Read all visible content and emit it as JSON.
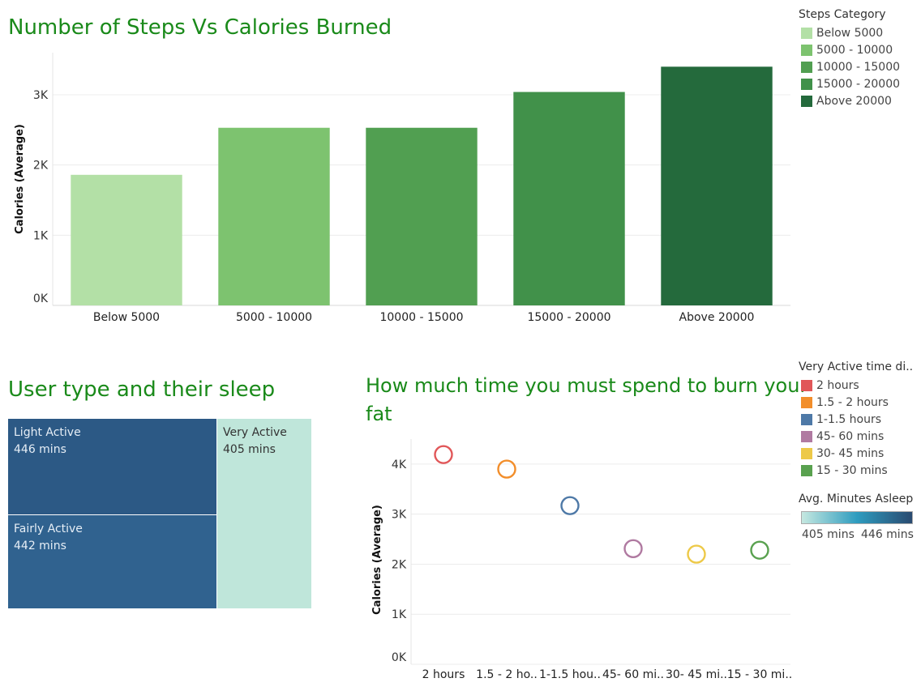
{
  "bar_chart": {
    "title": "Number of Steps Vs Calories Burned",
    "legend_title": "Steps Category"
  },
  "treemap": {
    "title": "User type and their sleep",
    "cells": [
      {
        "name": "Light Active",
        "value": "446 mins",
        "color": "#2c5985"
      },
      {
        "name": "Fairly Active",
        "value": "442 mins",
        "color": "#30628f"
      },
      {
        "name": "Very Active",
        "value": "405 mins",
        "color": "#bfe6da"
      }
    ]
  },
  "scatter_chart": {
    "title_line1": "How much time you must spend to burn your",
    "title_line2": "fat",
    "legend_title": "Very Active time di..",
    "gradient_legend": {
      "title": "Avg. Minutes Asleep",
      "min_label": "405 mins",
      "max_label": "446 mins",
      "color_low": "#c5e8e0",
      "color_mid": "#2e9cbf",
      "color_high": "#2a4a70"
    }
  },
  "chart_data": [
    {
      "type": "bar",
      "title": "Number of Steps Vs Calories Burned",
      "xlabel": "",
      "ylabel": "Calories (Average)",
      "categories": [
        "Below 5000",
        "5000 - 10000",
        "10000 - 15000",
        "15000 - 20000",
        "Above 20000"
      ],
      "values": [
        1860,
        2530,
        2530,
        3040,
        3400
      ],
      "colors": [
        "#b3e0a6",
        "#7dc36f",
        "#519f51",
        "#41914a",
        "#246a3c"
      ],
      "ylim": [
        0,
        3600
      ],
      "yticks": [
        0,
        1000,
        2000,
        3000
      ],
      "ytick_labels": [
        "0K",
        "1K",
        "2K",
        "3K"
      ],
      "legend": [
        "Below 5000",
        "5000 - 10000",
        "10000 - 15000",
        "15000 - 20000",
        "Above 20000"
      ],
      "legend_placement": "top-right",
      "grid": true
    },
    {
      "type": "scatter",
      "title": "How much time you must spend to burn your fat",
      "xlabel": "",
      "ylabel": "Calories (Average)",
      "categories": [
        "2 hours",
        "1.5 - 2 ho..",
        "1-1.5 hou..",
        "45- 60 mi..",
        "30- 45 mi..",
        "15 - 30 mi.."
      ],
      "legend": [
        "2 hours",
        "1.5 - 2 hours",
        "1-1.5 hours",
        "45- 60 mins",
        "30- 45 mins",
        "15 - 30 mins"
      ],
      "values": [
        4190,
        3900,
        3170,
        2310,
        2200,
        2280
      ],
      "colors": [
        "#e15759",
        "#f28e2b",
        "#4e79a7",
        "#b07aa1",
        "#edc948",
        "#59a14f"
      ],
      "ylim": [
        0,
        4500
      ],
      "yticks": [
        0,
        1000,
        2000,
        3000,
        4000
      ],
      "ytick_labels": [
        "0K",
        "1K",
        "2K",
        "3K",
        "4K"
      ],
      "legend_placement": "top-right",
      "grid": true
    }
  ]
}
